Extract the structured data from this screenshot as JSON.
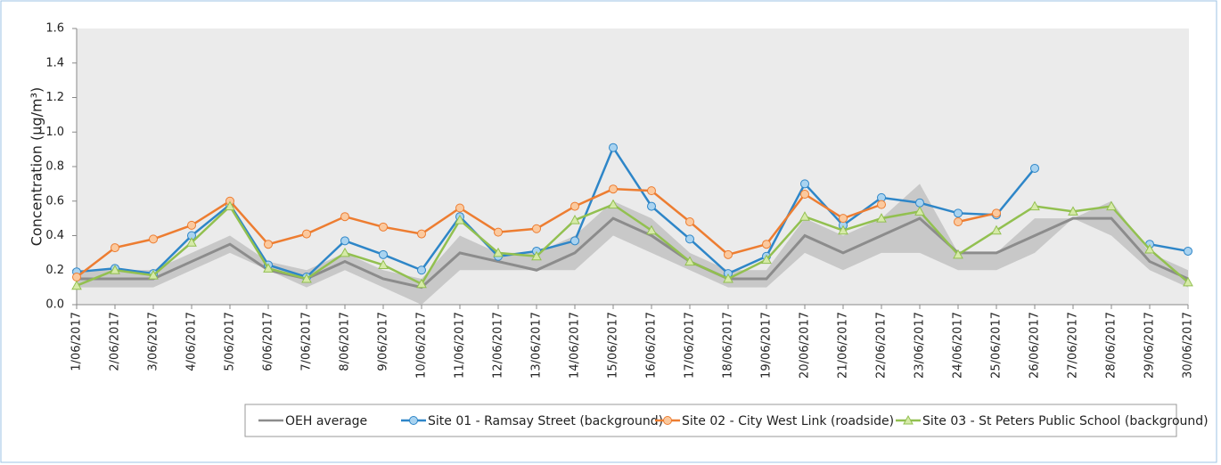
{
  "chart_data": {
    "type": "line",
    "y_label": "Concentration (µg/m³)",
    "categories": [
      "1/06/2017",
      "2/06/2017",
      "3/06/2017",
      "4/06/2017",
      "5/06/2017",
      "6/06/2017",
      "7/06/2017",
      "8/06/2017",
      "9/06/2017",
      "10/06/2017",
      "11/06/2017",
      "12/06/2017",
      "13/06/2017",
      "14/06/2017",
      "15/06/2017",
      "16/06/2017",
      "17/06/2017",
      "18/06/2017",
      "19/06/2017",
      "20/06/2017",
      "21/06/2017",
      "22/06/2017",
      "23/06/2017",
      "24/06/2017",
      "25/06/2017",
      "26/06/2017",
      "27/06/2017",
      "28/06/2017",
      "29/06/2017",
      "30/06/2017"
    ],
    "ylim": [
      0,
      1.6
    ],
    "yticks": [
      {
        "value": 0,
        "label": "0.0"
      },
      {
        "value": 0.2,
        "label": "0.2"
      },
      {
        "value": 0.4,
        "label": "0.4"
      },
      {
        "value": 0.6,
        "label": "0.6"
      },
      {
        "value": 0.8,
        "label": "0.8"
      },
      {
        "value": 1.0,
        "label": "1.0"
      },
      {
        "value": 1.2,
        "label": "1.2"
      },
      {
        "value": 1.4,
        "label": "1.4"
      },
      {
        "value": 1.6,
        "label": "1.6"
      }
    ],
    "band": {
      "color": "#c8c8c8",
      "low": [
        0.1,
        0.1,
        0.1,
        0.2,
        0.3,
        0.2,
        0.1,
        0.2,
        0.1,
        0.0,
        0.2,
        0.2,
        0.2,
        0.2,
        0.4,
        0.3,
        0.2,
        0.1,
        0.1,
        0.3,
        0.2,
        0.3,
        0.3,
        0.2,
        0.2,
        0.3,
        0.5,
        0.4,
        0.2,
        0.1
      ],
      "high": [
        0.2,
        0.2,
        0.2,
        0.3,
        0.4,
        0.25,
        0.2,
        0.3,
        0.2,
        0.15,
        0.4,
        0.3,
        0.3,
        0.4,
        0.6,
        0.5,
        0.3,
        0.2,
        0.2,
        0.5,
        0.4,
        0.5,
        0.7,
        0.3,
        0.3,
        0.5,
        0.5,
        0.6,
        0.3,
        0.2
      ]
    },
    "series": [
      {
        "name": "OEH average",
        "color": "#8c8c8c",
        "marker": null,
        "values": [
          0.15,
          0.15,
          0.15,
          0.25,
          0.35,
          0.2,
          0.15,
          0.25,
          0.15,
          0.1,
          0.3,
          0.25,
          0.2,
          0.3,
          0.5,
          0.4,
          0.25,
          0.15,
          0.15,
          0.4,
          0.3,
          0.4,
          0.5,
          0.3,
          0.3,
          0.4,
          0.5,
          0.5,
          0.25,
          0.15
        ]
      },
      {
        "name": "Site 01 - Ramsay Street (background)",
        "color": "#2e86c8",
        "marker": "circle",
        "marker_fill": "#a9d3f0",
        "values": [
          0.19,
          0.21,
          0.18,
          0.4,
          0.58,
          0.23,
          0.16,
          0.37,
          0.29,
          0.2,
          0.51,
          0.28,
          0.31,
          0.37,
          0.91,
          0.57,
          0.38,
          0.18,
          0.28,
          0.7,
          0.46,
          0.62,
          0.59,
          0.53,
          0.52,
          0.79,
          null,
          null,
          0.35,
          0.31
        ]
      },
      {
        "name": "Site 02 - City West Link (roadside)",
        "color": "#ed7d31",
        "marker": "circle",
        "marker_fill": "#fbc99e",
        "values": [
          0.16,
          0.33,
          0.38,
          0.46,
          0.6,
          0.35,
          0.41,
          0.51,
          0.45,
          0.41,
          0.56,
          0.42,
          0.44,
          0.57,
          0.67,
          0.66,
          0.48,
          0.29,
          0.35,
          0.64,
          0.5,
          0.58,
          null,
          0.48,
          0.53,
          null,
          null,
          null,
          null,
          null
        ]
      },
      {
        "name": "Site 03 - St Peters Public School (background)",
        "color": "#92c050",
        "marker": "triangle",
        "marker_fill": "#d6eaa8",
        "values": [
          0.11,
          0.2,
          0.17,
          0.36,
          0.57,
          0.21,
          0.15,
          0.3,
          0.23,
          0.12,
          0.49,
          0.3,
          0.28,
          0.49,
          0.58,
          0.43,
          0.25,
          0.15,
          0.26,
          0.51,
          0.43,
          0.5,
          0.54,
          0.29,
          0.43,
          0.57,
          0.54,
          0.57,
          0.32,
          0.13
        ]
      }
    ]
  }
}
